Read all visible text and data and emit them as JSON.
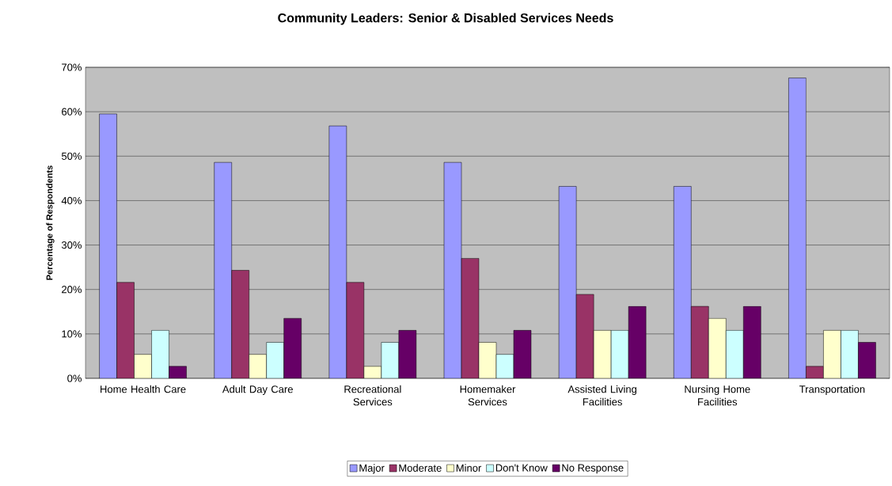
{
  "chart_data": {
    "type": "bar",
    "title": "Community Leaders: Senior & Disabled Services Needs",
    "ylabel": "Percentage of Respondents",
    "categories": [
      "Home Health Care",
      "Adult Day Care",
      "Recreational Services",
      "Homemaker Services",
      "Assisted Living Facilities",
      "Nursing Home Facilities",
      "Transportation"
    ],
    "series": [
      {
        "name": "Major",
        "color": "#9999ff",
        "values": [
          59.5,
          48.6,
          56.8,
          48.6,
          43.2,
          43.2,
          67.6
        ]
      },
      {
        "name": "Moderate",
        "color": "#993366",
        "values": [
          21.6,
          24.3,
          21.6,
          27.0,
          18.9,
          16.2,
          2.7
        ]
      },
      {
        "name": "Minor",
        "color": "#ffffcc",
        "values": [
          5.4,
          5.4,
          2.7,
          8.1,
          10.8,
          13.5,
          10.8
        ]
      },
      {
        "name": "Don't Know",
        "color": "#ccffff",
        "values": [
          10.8,
          8.1,
          8.1,
          5.4,
          10.8,
          10.8,
          10.8
        ]
      },
      {
        "name": "No Response",
        "color": "#660066",
        "values": [
          2.7,
          13.5,
          10.8,
          10.8,
          16.2,
          16.2,
          8.1
        ]
      }
    ],
    "ylim": [
      0,
      70
    ],
    "yticks": [
      {
        "value": 0,
        "label": "0%"
      },
      {
        "value": 10,
        "label": "10%"
      },
      {
        "value": 20,
        "label": "20%"
      },
      {
        "value": 30,
        "label": "30%"
      },
      {
        "value": 40,
        "label": "40%"
      },
      {
        "value": 50,
        "label": "50%"
      },
      {
        "value": 60,
        "label": "60%"
      },
      {
        "value": 70,
        "label": "70%"
      }
    ],
    "grid": true,
    "legend": "bottom"
  }
}
